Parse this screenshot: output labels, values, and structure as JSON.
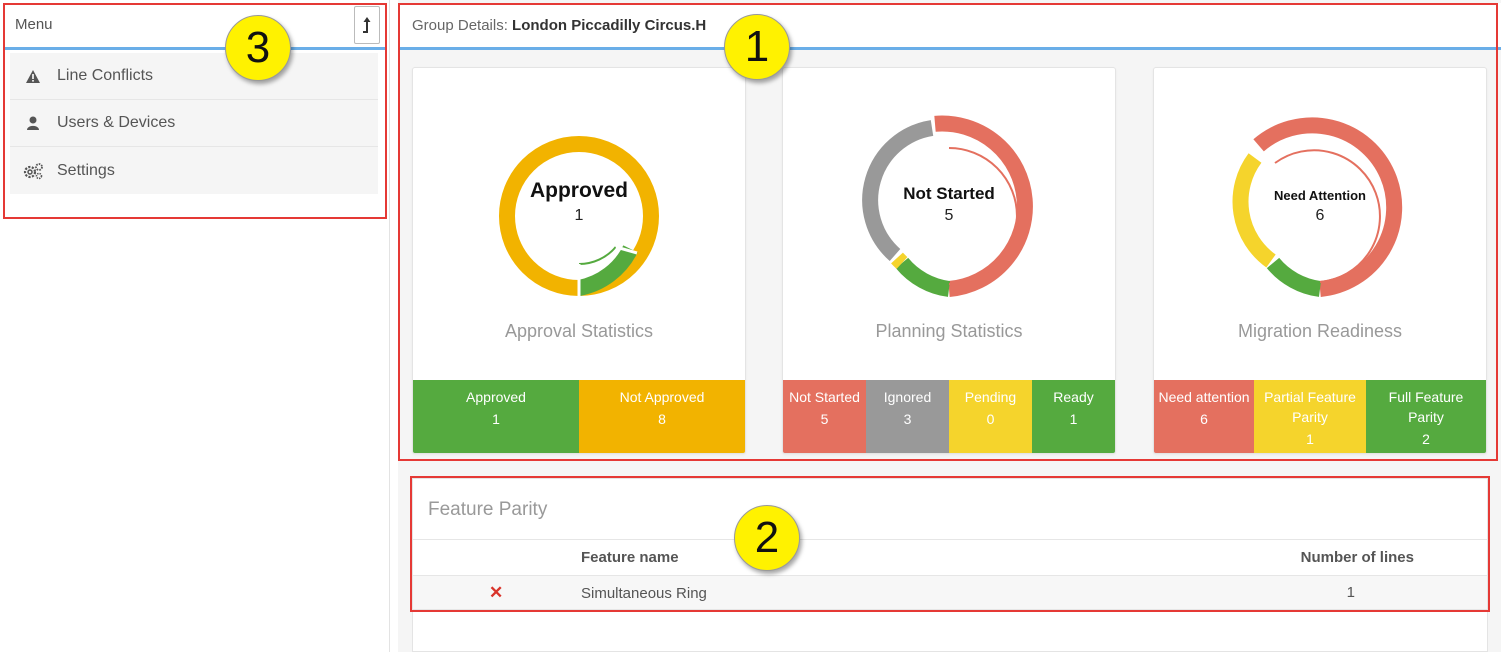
{
  "sidebar": {
    "title": "Menu",
    "items": [
      {
        "label": "Line Conflicts",
        "icon": "warning-icon"
      },
      {
        "label": "Users & Devices",
        "icon": "user-icon"
      },
      {
        "label": "Settings",
        "icon": "gears-icon"
      }
    ]
  },
  "header": {
    "prefix": "Group Details:",
    "group_name": "London Piccadilly Circus.H"
  },
  "cards": [
    {
      "title": "Approval Statistics",
      "center_label": "Approved",
      "center_value": "1",
      "stats": [
        {
          "label": "Approved",
          "value": "1",
          "color": "#55aa3f"
        },
        {
          "label": "Not Approved",
          "value": "8",
          "color": "#f2b300"
        }
      ]
    },
    {
      "title": "Planning Statistics",
      "center_label": "Not Started",
      "center_value": "5",
      "stats": [
        {
          "label": "Not Started",
          "value": "5",
          "color": "#e4705f"
        },
        {
          "label": "Ignored",
          "value": "3",
          "color": "#999999"
        },
        {
          "label": "Pending",
          "value": "0",
          "color": "#f5d42c"
        },
        {
          "label": "Ready",
          "value": "1",
          "color": "#55aa3f"
        }
      ]
    },
    {
      "title": "Migration Readiness",
      "center_label": "Need Attention",
      "center_value": "6",
      "stats": [
        {
          "label": "Need attention",
          "value": "6",
          "color": "#e4705f"
        },
        {
          "label": "Partial Feature Parity",
          "value": "1",
          "color": "#f5d42c"
        },
        {
          "label": "Full Feature Parity",
          "value": "2",
          "color": "#55aa3f"
        }
      ]
    }
  ],
  "feature_parity": {
    "title": "Feature Parity",
    "columns": [
      "Feature name",
      "Number of lines"
    ],
    "rows": [
      {
        "status_icon": "cross-icon",
        "status_symbol": "✕",
        "name": "Simultaneous Ring",
        "lines": "1"
      }
    ]
  },
  "annotations": [
    "1",
    "2",
    "3"
  ]
}
